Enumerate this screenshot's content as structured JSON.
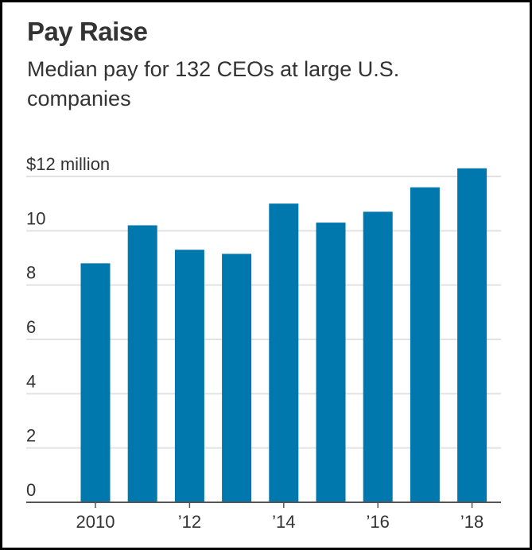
{
  "title": "Pay Raise",
  "subtitle": "Median pay for 132 CEOs at large U.S. companies",
  "chart_data": {
    "type": "bar",
    "title": "Pay Raise",
    "subtitle": "Median pay for 132 CEOs at large U.S. companies",
    "xlabel": "",
    "ylabel": "$ million",
    "categories": [
      "2010",
      "2011",
      "2012",
      "2013",
      "2014",
      "2015",
      "2016",
      "2017",
      "2018"
    ],
    "values": [
      8.8,
      10.2,
      9.3,
      9.15,
      11.0,
      10.3,
      10.7,
      11.6,
      12.3
    ],
    "ylim": [
      0,
      12
    ],
    "yticks": [
      0,
      2,
      4,
      6,
      8,
      10,
      12
    ],
    "ytick_labels": [
      "0",
      "2",
      "4",
      "6",
      "8",
      "10",
      "$12 million"
    ],
    "xticks": [
      "2010",
      "2012",
      "2014",
      "2016",
      "2018"
    ],
    "xtick_labels": [
      "2010",
      "’12",
      "’14",
      "’16",
      "’18"
    ],
    "grid": true,
    "legend": "none",
    "colors": {
      "bar": "#0077ad",
      "grid": "#e2e2e2",
      "axis": "#555555",
      "text": "#333333"
    }
  }
}
